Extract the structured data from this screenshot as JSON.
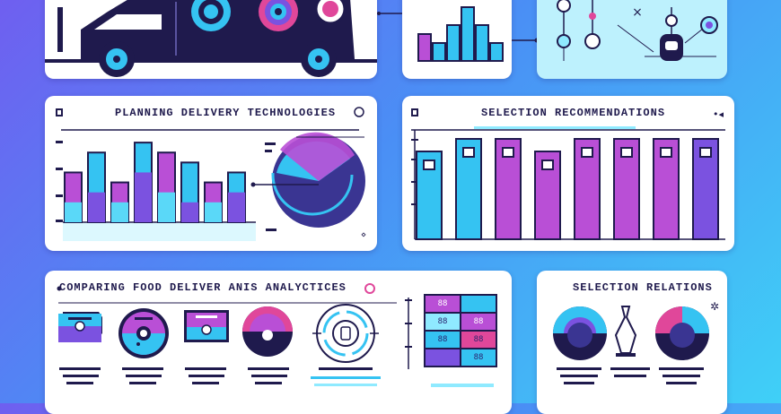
{
  "colors": {
    "navy": "#1f1a4d",
    "cyan": "#35c3f2",
    "magenta": "#b94fd6",
    "violet": "#7b52e0",
    "pink": "#e0479a",
    "light_cyan": "#8feaff"
  },
  "top_bar_chart": {
    "values": [
      3,
      2,
      4,
      6,
      4,
      2
    ],
    "caption": ""
  },
  "delivery_panel": {
    "title": "PLANNING DELIVERY TECHNOLOGIES",
    "chart_data": {
      "type": "bar",
      "series": [
        {
          "name": "",
          "values": [
            5,
            7,
            4,
            8,
            7,
            6,
            4,
            5
          ]
        },
        {
          "name": "",
          "values": [
            2,
            3,
            2,
            5,
            3,
            2,
            2,
            3
          ]
        }
      ]
    },
    "caption": "",
    "pie_values": [
      30,
      70
    ]
  },
  "selection_panel": {
    "title": "SELECTION RECOMMENDATIONS",
    "chart_data": {
      "type": "bar",
      "series": [
        {
          "name": "",
          "values": [
            7,
            8,
            8,
            7,
            8,
            8,
            8,
            8
          ]
        }
      ]
    }
  },
  "comparing_panel": {
    "title": "COMPARING FOOD DELIVER ANIS ANALYCTICES",
    "grid_labels": [
      "88",
      "88",
      "88",
      "88",
      "88",
      "88"
    ],
    "caption": ""
  },
  "relations_panel": {
    "title": "SELECTION RELATIONS"
  },
  "icons": [
    "van-icon",
    "wheel-icon",
    "network-icon",
    "pie-icon",
    "tag-icon",
    "target-icon",
    "chess-piece-icon",
    "gear-icon"
  ]
}
